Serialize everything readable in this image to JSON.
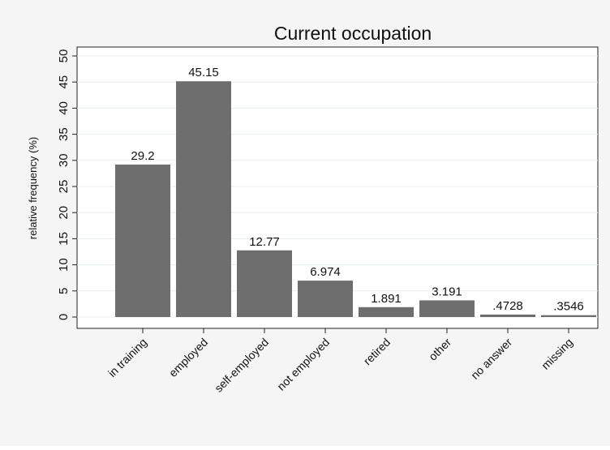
{
  "chart_data": {
    "type": "bar",
    "title": "Current occupation",
    "ylabel": "relative frequency (%)",
    "xlabel": "",
    "categories": [
      "in training",
      "employed",
      "self-employed",
      "not employed",
      "retired",
      "other",
      "no answer",
      "missing"
    ],
    "values": [
      29.2,
      45.15,
      12.77,
      6.974,
      1.891,
      3.191,
      0.4728,
      0.3546
    ],
    "value_labels": [
      "29.2",
      "45.15",
      "12.77",
      "6.974",
      "1.891",
      "3.191",
      ".4728",
      ".3546"
    ],
    "ylim": [
      0,
      50
    ],
    "yticks": [
      0,
      5,
      10,
      15,
      20,
      25,
      30,
      35,
      40,
      45,
      50
    ],
    "grid": true,
    "bar_color": "#6e6e6e",
    "grid_color": "#e8eef2",
    "background": "#ffffff",
    "figure_background": "#f5f5f5"
  }
}
